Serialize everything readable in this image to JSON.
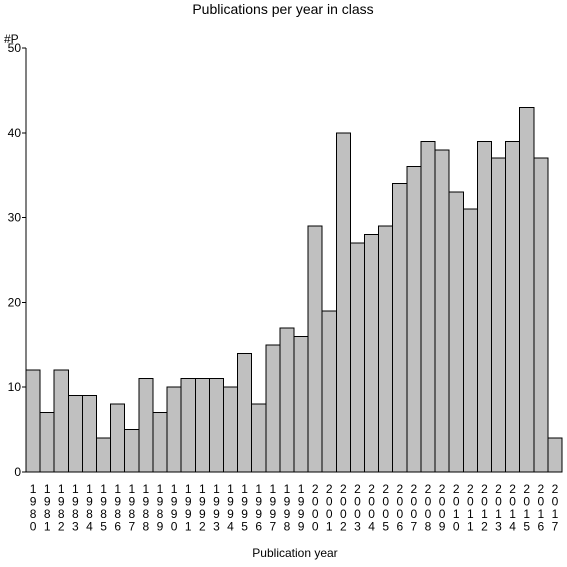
{
  "chart_data": {
    "type": "bar",
    "title": "Publications per year in class",
    "ylabel": "#P",
    "xlabel": "Publication year",
    "ylim": [
      0,
      50
    ],
    "yticks": [
      0,
      10,
      20,
      30,
      40,
      50
    ],
    "grid": false,
    "legend": "none",
    "colors": {
      "bar_fill": "#c0c0c0",
      "bar_stroke": "#000000",
      "axis": "#000000",
      "background": "#ffffff"
    },
    "categories": [
      "1980",
      "1981",
      "1982",
      "1983",
      "1984",
      "1985",
      "1986",
      "1987",
      "1988",
      "1989",
      "1990",
      "1991",
      "1992",
      "1993",
      "1994",
      "1995",
      "1996",
      "1997",
      "1998",
      "1999",
      "2000",
      "2001",
      "2002",
      "2003",
      "2004",
      "2005",
      "2006",
      "2007",
      "2008",
      "2009",
      "2010",
      "2011",
      "2012",
      "2013",
      "2014",
      "2015",
      "2016",
      "2017"
    ],
    "values": [
      12,
      7,
      12,
      9,
      9,
      4,
      8,
      5,
      11,
      7,
      10,
      11,
      11,
      11,
      10,
      14,
      8,
      15,
      17,
      16,
      29,
      19,
      40,
      27,
      28,
      29,
      34,
      36,
      39,
      38,
      33,
      31,
      39,
      37,
      39,
      43,
      37,
      4
    ]
  }
}
